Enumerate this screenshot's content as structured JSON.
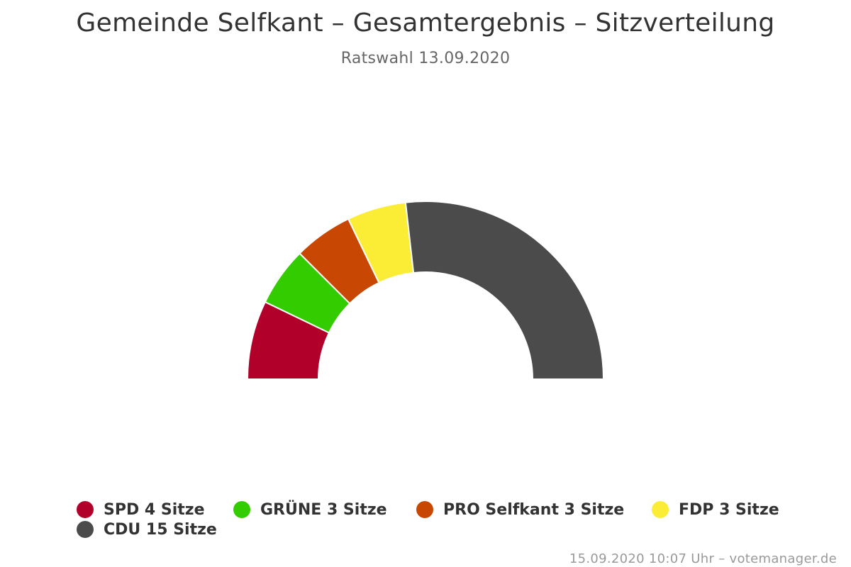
{
  "chart_data": {
    "type": "pie",
    "variant": "semicircle",
    "title": "Gemeinde Selfkant – Gesamtergebnis – Sitzverteilung",
    "subtitle": "Ratswahl 13.09.2020",
    "series": [
      {
        "name": "SPD",
        "value": 4,
        "label": "SPD 4 Sitze",
        "color": "#b1002a"
      },
      {
        "name": "GRÜNE",
        "value": 3,
        "label": "GRÜNE 3 Sitze",
        "color": "#33cc00"
      },
      {
        "name": "PRO Selfkant",
        "value": 3,
        "label": "PRO Selfkant 3 Sitze",
        "color": "#c84803"
      },
      {
        "name": "FDP",
        "value": 3,
        "label": "FDP 3 Sitze",
        "color": "#fbec35"
      },
      {
        "name": "CDU",
        "value": 15,
        "label": "CDU 15 Sitze",
        "color": "#4b4b4b"
      }
    ],
    "legend_position": "bottom"
  },
  "credits": "15.09.2020 10:07 Uhr – votemanager.de"
}
